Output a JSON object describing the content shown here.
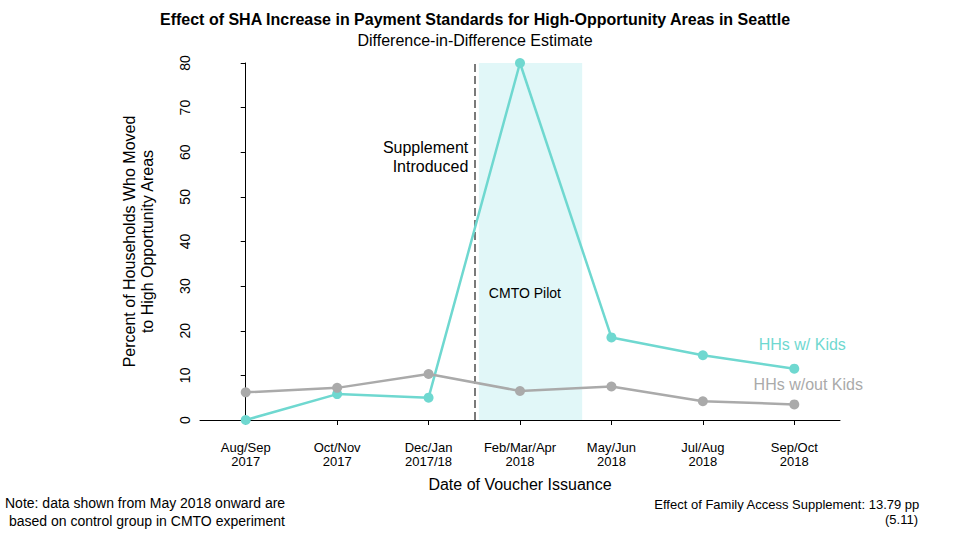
{
  "chart_data": {
    "type": "line",
    "title": "Effect of SHA Increase in Payment Standards for High-Opportunity Areas in Seattle",
    "subtitle": "Difference-in-Difference Estimate",
    "x_label": "Date of Voucher Issuance",
    "y_label": "Percent of Households Who Moved\nto High Opportunity Areas",
    "categories": [
      "Aug/Sep\n2017",
      "Oct/Nov\n2017",
      "Dec/Jan\n2017/18",
      "Feb/Mar/Apr\n2018",
      "May/Jun\n2018",
      "Jul/Aug\n2018",
      "Sep/Oct\n2018"
    ],
    "series": [
      {
        "name": "HHs w/ Kids",
        "color": "#6fd8d0",
        "marker": "circle",
        "values": [
          0,
          5.8,
          5,
          80,
          18.5,
          14.5,
          11.5
        ]
      },
      {
        "name": "HHs w/out Kids",
        "color": "#aaaaaa",
        "marker": "circle",
        "values": [
          6.2,
          7.2,
          10.3,
          6.5,
          7.5,
          4.2,
          3.5
        ]
      }
    ],
    "ylim": [
      0,
      80
    ],
    "yticks": [
      0,
      10,
      20,
      30,
      40,
      50,
      60,
      70,
      80
    ],
    "grid": false,
    "annotations": {
      "event_line": {
        "after_category": "Dec/Jan\n2017/18",
        "label": "Supplement\nIntroduced",
        "line_style": "dashed"
      },
      "shaded_region": {
        "category": "Feb/Mar/Apr\n2018",
        "label": "CMTO Pilot"
      },
      "note": "Note: data shown from May 2018 onward are\n based on control group in CMTO experiment",
      "effect": [
        "Effect of Family Access Supplement: 13.79 pp",
        "(5.11)"
      ]
    }
  }
}
